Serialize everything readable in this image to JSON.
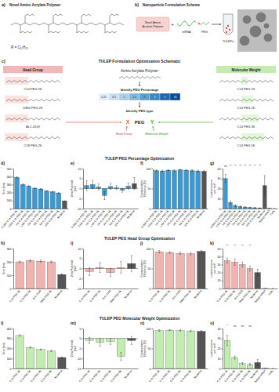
{
  "figure": {
    "panel_a": {
      "label": "a)",
      "title": "Novel Amino Acrylate Polymer",
      "r_group": "R = C₁₂H₂₅"
    },
    "panel_b": {
      "label": "b)",
      "title": "Nanoparticle Formulation Scheme",
      "polymer": [
        "Novel Amino",
        "Acrylate Polymer"
      ],
      "plus": "+",
      "mrna": "mRNA",
      "peg": "PEG",
      "product": "TULEPs"
    },
    "panel_c": {
      "label": "c)",
      "title": "TULEP Formulation Optimization Schematic",
      "head_group_title": "Head Group",
      "head_groups": [
        "C14 PEG 2K",
        "DMG PEG 2K",
        "ALC-0159",
        "C18 PEG 2K"
      ],
      "molecular_weight_title": "Molecular Weight",
      "molecular_weights": [
        "C14 PEG 1K",
        "C14 PEG 2K",
        "C14 PEG 3K",
        "C14 PEG 5K"
      ],
      "polymer": "Amino Acrylate Polymer",
      "step_percentage": "Identify PEG Percentage",
      "percentages": [
        0.25,
        0.5,
        1,
        1.5,
        2,
        3,
        5,
        10
      ],
      "step_type": "Identify PEG type",
      "formula": [
        "X",
        "PEG",
        "Y"
      ],
      "formula_x": "Head Group",
      "formula_y": "Molecular Weight"
    },
    "section_titles": [
      "TULEP PEG Percentage Optimization",
      "TULEP PEG Head Group Optimization",
      "TULEP PEG Molecular Weight Optimization"
    ]
  },
  "chart_data": [
    {
      "type": "bar",
      "title": "d)",
      "y_label": [
        "Size (nm)"
      ],
      "categories": [
        "0.25% C14 PEG 2K",
        "0.5% C14 PEG 2K",
        "1% C14 PEG 2K",
        "1.5% C14 PEG 2K",
        "2% C14 PEG 2K",
        "3% C14 PEG 2K",
        "5% C14 PEG 2K",
        "10% C14 PEG 2K",
        "Moderna"
      ],
      "values": [
        390,
        300,
        280,
        255,
        245,
        220,
        210,
        195,
        95
      ],
      "errors": [
        10,
        8,
        6,
        5,
        6,
        5,
        4,
        5,
        3
      ],
      "colors": [
        "#3d9ad1",
        "#3d9ad1",
        "#3d9ad1",
        "#3d9ad1",
        "#3d9ad1",
        "#3d9ad1",
        "#3d9ad1",
        "#3d9ad1",
        "#555555"
      ],
      "ylim": [
        0,
        500
      ],
      "yticks": [
        0,
        100,
        200,
        300,
        400,
        500
      ]
    },
    {
      "type": "bar",
      "title": "e)",
      "y_label": [
        "Zeta Potential",
        "(mV)"
      ],
      "categories": [
        "0.25% C14 PEG 2K",
        "0.5% C14 PEG 2K",
        "1% C14 PEG 2K",
        "1.5% C14 PEG 2K",
        "2% C14 PEG 2K",
        "3% C14 PEG 2K",
        "5% C14 PEG 2K",
        "10% C14 PEG 2K",
        "Moderna"
      ],
      "values": [
        1.5,
        2.0,
        0.8,
        -3.5,
        1.0,
        0.5,
        -0.8,
        1.2,
        2.5
      ],
      "errors": [
        2.5,
        2,
        1.5,
        2,
        1.5,
        1,
        1,
        1.5,
        3
      ],
      "colors": [
        "#3d9ad1",
        "#3d9ad1",
        "#3d9ad1",
        "#3d9ad1",
        "#3d9ad1",
        "#3d9ad1",
        "#3d9ad1",
        "#3d9ad1",
        "#555555"
      ],
      "ylim": [
        -10,
        10
      ],
      "yticks": [
        -10,
        -5,
        0,
        5,
        10
      ]
    },
    {
      "type": "bar",
      "title": "f)",
      "y_label": [
        "Encapsulation",
        "Efficiency (%)"
      ],
      "categories": [
        "0.25% C14 PEG 2K",
        "0.5% C14 PEG 2K",
        "1% C14 PEG 2K",
        "1.5% C14 PEG 2K",
        "2% C14 PEG 2K",
        "3% C14 PEG 2K",
        "5% C14 PEG 2K",
        "10% C14 PEG 2K",
        "Moderna"
      ],
      "values": [
        95,
        94,
        96,
        95,
        97,
        96,
        95,
        94,
        93
      ],
      "errors": [
        2,
        2,
        1,
        2,
        1,
        1,
        2,
        2,
        2
      ],
      "colors": [
        "#3d9ad1",
        "#3d9ad1",
        "#3d9ad1",
        "#3d9ad1",
        "#3d9ad1",
        "#3d9ad1",
        "#3d9ad1",
        "#3d9ad1",
        "#555555"
      ],
      "ylim": [
        0,
        100
      ],
      "yticks": [
        0,
        50,
        100
      ]
    },
    {
      "type": "bar",
      "title": "g)",
      "y_label": [
        "Luminescence",
        "per well"
      ],
      "categories": [
        "0.25% C14 PEG 2K",
        "0.5% C14 PEG 2K",
        "1% C14 PEG 2K",
        "1.5% C14 PEG 2K",
        "2% C14 PEG 2K",
        "3% C14 PEG 2K",
        "5% C14 PEG 2K",
        "10% C14 PEG 2K",
        "Moderna",
        "Naked mRNA",
        "Cells"
      ],
      "values": [
        30,
        6,
        3,
        2,
        1.5,
        1,
        0.8,
        0.5,
        23,
        0.1,
        0
      ],
      "errors": [
        4,
        1.5,
        1,
        0.5,
        0.5,
        0.3,
        0.3,
        0.2,
        10,
        0,
        0
      ],
      "colors": [
        "#3d9ad1",
        "#3d9ad1",
        "#3d9ad1",
        "#3d9ad1",
        "#3d9ad1",
        "#3d9ad1",
        "#3d9ad1",
        "#3d9ad1",
        "#555555",
        "#8c8c8c",
        "#c8c8c8"
      ],
      "ylim": [
        0,
        40
      ],
      "yticks": [
        0,
        10,
        20,
        30,
        40
      ],
      "annotations": [
        "ns",
        "**",
        "**",
        "**",
        "**",
        "**",
        "**",
        "**",
        null,
        null,
        null
      ]
    },
    {
      "type": "bar",
      "title": "h)",
      "y_label": [
        "Size (nm)"
      ],
      "categories": [
        "C14 PEG 2K",
        "C18 PEG 2K",
        "ALC-0159",
        "DMG PEG 2K",
        "Moderna"
      ],
      "values": [
        200,
        210,
        205,
        200,
        105
      ],
      "errors": [
        6,
        8,
        7,
        6,
        4
      ],
      "colors": [
        "#f0b3b0",
        "#f0b3b0",
        "#f0b3b0",
        "#f0b3b0",
        "#555555"
      ],
      "ylim": [
        0,
        300
      ],
      "yticks": [
        0,
        100,
        200,
        300
      ]
    },
    {
      "type": "bar",
      "title": "i)",
      "y_label": [
        "Zeta Potential",
        "(mV)"
      ],
      "categories": [
        "C14 PEG 2K",
        "C18 PEG 2K",
        "ALC-0159",
        "DMG PEG 2K",
        "Moderna"
      ],
      "values": [
        -1.5,
        0.5,
        -2.0,
        0.5,
        2.5
      ],
      "errors": [
        2,
        2.5,
        2,
        3,
        4
      ],
      "colors": [
        "#f0b3b0",
        "#f0b3b0",
        "#f0b3b0",
        "#f0b3b0",
        "#555555"
      ],
      "ylim": [
        -10,
        10
      ],
      "yticks": [
        -10,
        -5,
        0,
        5,
        10
      ]
    },
    {
      "type": "bar",
      "title": "j)",
      "y_label": [
        "Encapsulation",
        "Efficiency (%)"
      ],
      "categories": [
        "C14 PEG 2K",
        "C18 PEG 2K",
        "ALC-0159",
        "DMG PEG 2K",
        "Moderna"
      ],
      "values": [
        92,
        90,
        88,
        87,
        93
      ],
      "errors": [
        3,
        2,
        3,
        3,
        2
      ],
      "colors": [
        "#f0b3b0",
        "#f0b3b0",
        "#f0b3b0",
        "#f0b3b0",
        "#555555"
      ],
      "ylim": [
        0,
        100
      ],
      "yticks": [
        0,
        50,
        100
      ]
    },
    {
      "type": "bar",
      "title": "k)",
      "y_label": [
        "Luminescence",
        "per well"
      ],
      "categories": [
        "C14 PEG 2K",
        "C18 PEG 2K",
        "ALC-0159",
        "DMG PEG 2K",
        "Moderna",
        "Naked mRNA",
        "Cells"
      ],
      "values": [
        35,
        33,
        30,
        25,
        20,
        0.1,
        0
      ],
      "errors": [
        3,
        4,
        3,
        3,
        4,
        0,
        0
      ],
      "colors": [
        "#f0b3b0",
        "#f0b3b0",
        "#f0b3b0",
        "#f0b3b0",
        "#555555",
        "#8c8c8c",
        "#c8c8c8"
      ],
      "ylim": [
        0,
        50
      ],
      "yticks": [
        0,
        10,
        20,
        30,
        40,
        50
      ],
      "annotations": [
        "**",
        "**",
        "**",
        "**",
        null,
        null,
        null
      ]
    },
    {
      "type": "bar",
      "title": "l)",
      "y_label": [
        "Size (nm)"
      ],
      "categories": [
        "C14 PEG 1K",
        "C14 PEG 2K",
        "C14 PEG 3K",
        "C14 PEG 5K",
        "Moderna"
      ],
      "values": [
        330,
        210,
        190,
        175,
        110
      ],
      "errors": [
        8,
        6,
        5,
        6,
        4
      ],
      "colors": [
        "#c2ecb0",
        "#c2ecb0",
        "#c2ecb0",
        "#c2ecb0",
        "#555555"
      ],
      "ylim": [
        0,
        400
      ],
      "yticks": [
        0,
        100,
        200,
        300,
        400
      ]
    },
    {
      "type": "bar",
      "title": "m)",
      "y_label": [
        "Zeta Potential",
        "(mV)"
      ],
      "categories": [
        "C14 PEG 1K",
        "C14 PEG 2K",
        "C14 PEG 3K",
        "C14 PEG 5K",
        "Moderna"
      ],
      "values": [
        -1.0,
        -2.0,
        -1.5,
        -9.0,
        -1.0
      ],
      "errors": [
        1.5,
        2,
        1.5,
        2,
        2
      ],
      "colors": [
        "#c2ecb0",
        "#c2ecb0",
        "#c2ecb0",
        "#c2ecb0",
        "#555555"
      ],
      "ylim": [
        -15,
        5
      ],
      "yticks": [
        -15,
        -10,
        -5,
        0,
        5
      ]
    },
    {
      "type": "bar",
      "title": "n)",
      "y_label": [
        "Encapsulation",
        "Efficiency (%)"
      ],
      "categories": [
        "C14 PEG 1K",
        "C14 PEG 2K",
        "C14 PEG 3K",
        "C14 PEG 5K",
        "Moderna"
      ],
      "values": [
        95,
        96,
        95,
        94,
        93
      ],
      "errors": [
        2,
        1,
        2,
        2,
        2
      ],
      "colors": [
        "#c2ecb0",
        "#c2ecb0",
        "#c2ecb0",
        "#c2ecb0",
        "#555555"
      ],
      "ylim": [
        0,
        100
      ],
      "yticks": [
        0,
        50,
        100
      ]
    },
    {
      "type": "bar",
      "title": "o)",
      "y_label": [
        "Luminescence",
        "per well"
      ],
      "categories": [
        "C14 PEG 1K",
        "C14 PEG 2K",
        "C14 PEG 3K",
        "C14 PEG 5K",
        "Moderna",
        "Naked mRNA",
        "Cells"
      ],
      "values": [
        28,
        11,
        5,
        4,
        6,
        0.1,
        0
      ],
      "errors": [
        5,
        1.5,
        1,
        1,
        3,
        0,
        0
      ],
      "colors": [
        "#c2ecb0",
        "#c2ecb0",
        "#c2ecb0",
        "#c2ecb0",
        "#555555",
        "#8c8c8c",
        "#c8c8c8"
      ],
      "ylim": [
        0,
        40
      ],
      "yticks": [
        0,
        10,
        20,
        30,
        40
      ],
      "annotations": [
        "*",
        "ns",
        "ns",
        "ns",
        null,
        null,
        null
      ]
    }
  ]
}
